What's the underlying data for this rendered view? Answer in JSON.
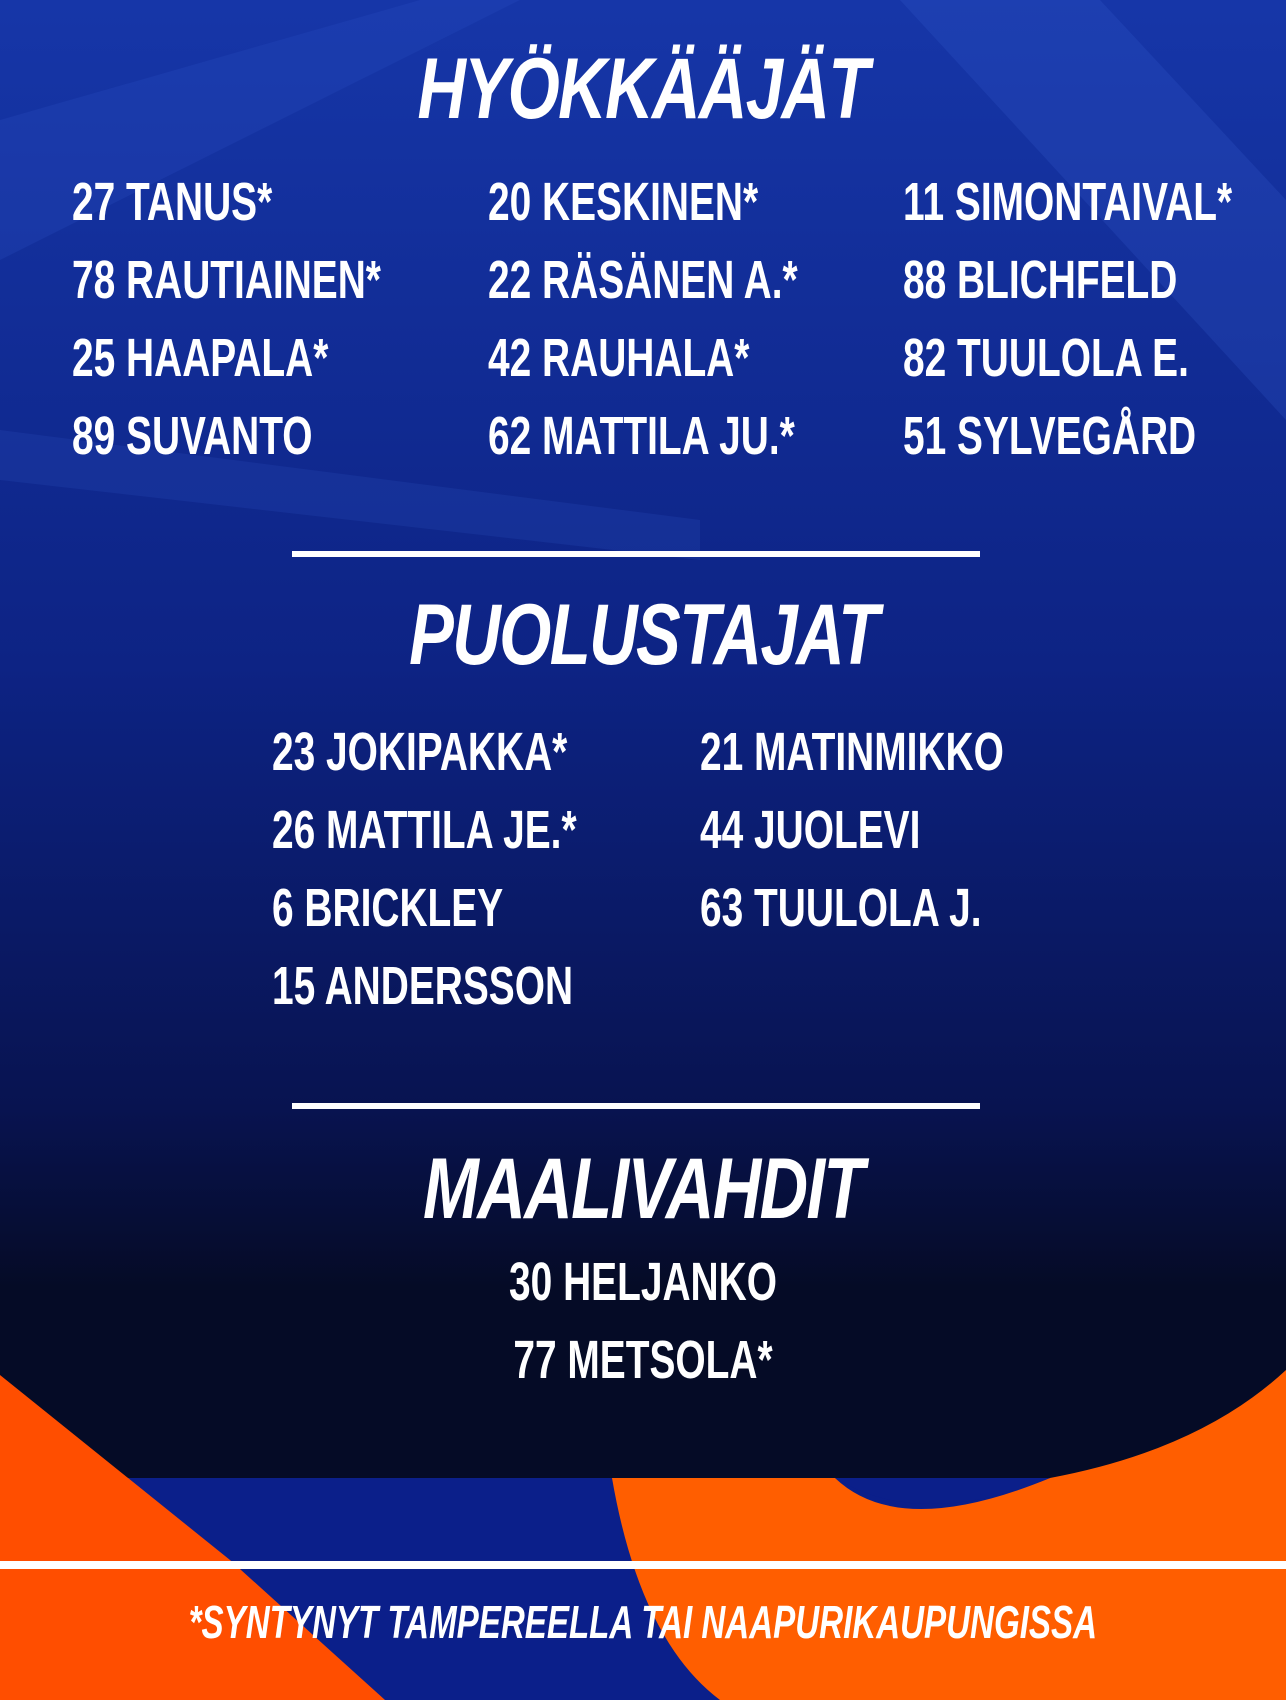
{
  "colors": {
    "background_blue": "#0a1a6a",
    "dark_navy": "#050b26",
    "orange": "#ff5a00",
    "text": "#ffffff"
  },
  "forwards": {
    "title": "HYÖKKÄÄJÄT",
    "columns": [
      [
        "27 TANUS*",
        "78 RAUTIAINEN*",
        "25 HAAPALA*",
        "89 SUVANTO"
      ],
      [
        "20 KESKINEN*",
        "22 RÄSÄNEN A.*",
        "42 RAUHALA*",
        "62 MATTILA JU.*"
      ],
      [
        "11 SIMONTAIVAL*",
        "88 BLICHFELD",
        "82 TUULOLA E.",
        "51 SYLVEGÅRD"
      ]
    ]
  },
  "defense": {
    "title": "PUOLUSTAJAT",
    "columns": [
      [
        "23 JOKIPAKKA*",
        "26 MATTILA JE.*",
        "6 BRICKLEY",
        "15 ANDERSSON"
      ],
      [
        "21 MATINMIKKO",
        "44 JUOLEVI",
        "63 TUULOLA J."
      ]
    ]
  },
  "goalies": {
    "title": "MAALIVAHDIT",
    "players": [
      "30 HELJANKO",
      "77 METSOLA*"
    ]
  },
  "footnote": "*SYNTYNYT TAMPEREELLA TAI NAAPURIKAUPUNGISSA"
}
